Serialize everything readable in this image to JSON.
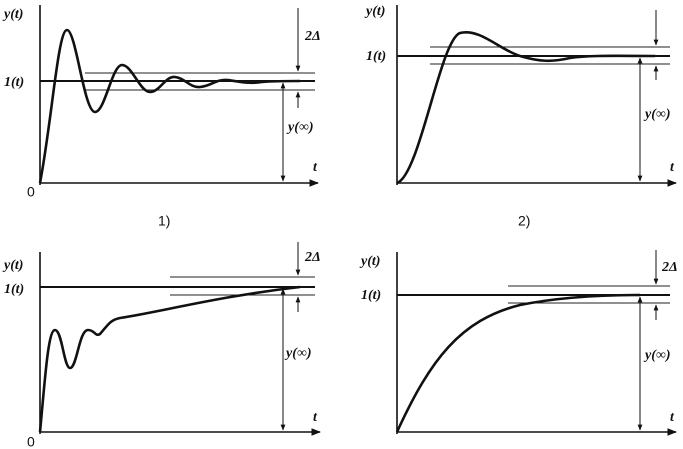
{
  "panels": [
    {
      "y_label": "y(t)",
      "reference_label": "1(t)",
      "band_label": "2Δ",
      "final_label": "y(∞)",
      "x_label": "t",
      "origin": "0",
      "caption": "1)"
    },
    {
      "y_label": "y(t)",
      "reference_label": "1(t)",
      "final_label": "y(∞)",
      "x_label": "t",
      "caption": "2)"
    },
    {
      "y_label": "y(t)",
      "reference_label": "1(t)",
      "band_label": "2Δ",
      "final_label": "y(∞)",
      "x_label": "t",
      "origin": "0"
    },
    {
      "y_label": "y(t)",
      "reference_label": "1(t)",
      "band_label": "2Δ",
      "final_label": "y(∞)",
      "x_label": "t"
    }
  ]
}
